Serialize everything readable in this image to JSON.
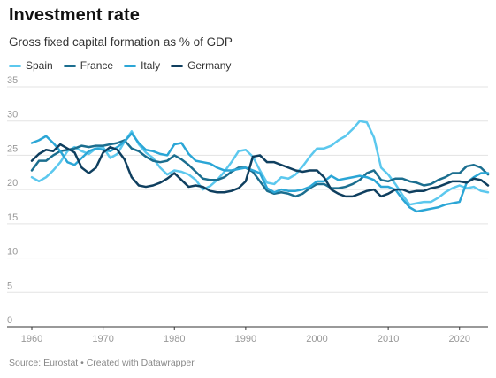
{
  "title": "Investment rate",
  "subtitle": "Gross fixed capital formation as % of GDP",
  "footer": "Source: Eurostat • Created with Datawrapper",
  "legend": [
    {
      "name": "Spain",
      "color": "#5cc8ee"
    },
    {
      "name": "France",
      "color": "#1b6e8f"
    },
    {
      "name": "Italy",
      "color": "#2ba6d6"
    },
    {
      "name": "Germany",
      "color": "#0f3f5f"
    }
  ],
  "chart_data": {
    "type": "line",
    "title": "Investment rate",
    "subtitle": "Gross fixed capital formation as % of GDP",
    "xlim": [
      1960,
      2024
    ],
    "ylim": [
      0,
      35
    ],
    "x_ticks": [
      "1960",
      "1970",
      "1980",
      "1990",
      "2000",
      "2010",
      "2020"
    ],
    "y_ticks": [
      "0",
      "5",
      "10",
      "15",
      "20",
      "25",
      "30",
      "35"
    ],
    "grid": true,
    "legend_position": "top-left",
    "series": [
      {
        "name": "Spain",
        "color": "#5cc8ee",
        "x": [
          1960,
          1961,
          1962,
          1963,
          1964,
          1965,
          1966,
          1967,
          1968,
          1969,
          1970,
          1971,
          1972,
          1973,
          1974,
          1975,
          1976,
          1977,
          1978,
          1979,
          1980,
          1981,
          1982,
          1983,
          1984,
          1985,
          1986,
          1987,
          1988,
          1989,
          1990,
          1991,
          1992,
          1993,
          1994,
          1995,
          1996,
          1997,
          1998,
          1999,
          2000,
          2001,
          2002,
          2003,
          2004,
          2005,
          2006,
          2007,
          2008,
          2009,
          2010,
          2011,
          2012,
          2013,
          2014,
          2015,
          2016,
          2017,
          2018,
          2019,
          2020,
          2021,
          2022,
          2023,
          2024
        ],
        "y": [
          21.8,
          21.2,
          21.8,
          22.8,
          24.0,
          25.6,
          26.2,
          25.6,
          25.2,
          26.0,
          26.2,
          24.6,
          25.2,
          27.0,
          28.5,
          26.6,
          25.4,
          24.6,
          23.2,
          22.2,
          22.8,
          22.6,
          22.2,
          21.4,
          20.0,
          20.5,
          21.4,
          22.6,
          24.0,
          25.6,
          25.8,
          24.8,
          22.8,
          21.0,
          20.8,
          21.8,
          21.6,
          22.2,
          23.4,
          24.8,
          26.0,
          26.0,
          26.4,
          27.2,
          27.8,
          28.8,
          30.0,
          29.8,
          27.6,
          23.2,
          22.2,
          20.8,
          19.2,
          17.8,
          18.0,
          18.2,
          18.2,
          18.8,
          19.6,
          20.2,
          20.6,
          20.2,
          20.4,
          19.8,
          19.6
        ]
      },
      {
        "name": "France",
        "color": "#1b6e8f",
        "x": [
          1960,
          1961,
          1962,
          1963,
          1964,
          1965,
          1966,
          1967,
          1968,
          1969,
          1970,
          1971,
          1972,
          1973,
          1974,
          1975,
          1976,
          1977,
          1978,
          1979,
          1980,
          1981,
          1982,
          1983,
          1984,
          1985,
          1986,
          1987,
          1988,
          1989,
          1990,
          1991,
          1992,
          1993,
          1994,
          1995,
          1996,
          1997,
          1998,
          1999,
          2000,
          2001,
          2002,
          2003,
          2004,
          2005,
          2006,
          2007,
          2008,
          2009,
          2010,
          2011,
          2012,
          2013,
          2014,
          2015,
          2016,
          2017,
          2018,
          2019,
          2020,
          2021,
          2022,
          2023,
          2024
        ],
        "y": [
          22.8,
          24.2,
          24.2,
          25.0,
          25.6,
          25.8,
          26.0,
          26.4,
          26.2,
          26.4,
          26.4,
          26.6,
          26.8,
          27.2,
          26.0,
          25.6,
          24.8,
          24.2,
          24.0,
          24.2,
          25.0,
          24.4,
          23.6,
          22.6,
          21.6,
          21.4,
          21.4,
          21.8,
          22.6,
          23.2,
          23.2,
          22.6,
          21.2,
          19.8,
          19.4,
          19.6,
          19.4,
          19.0,
          19.4,
          20.2,
          20.8,
          20.8,
          20.2,
          20.2,
          20.4,
          20.8,
          21.4,
          22.4,
          22.8,
          21.4,
          21.2,
          21.6,
          21.6,
          21.2,
          21.0,
          20.6,
          20.8,
          21.4,
          21.8,
          22.4,
          22.4,
          23.4,
          23.6,
          23.2,
          22.2
        ]
      },
      {
        "name": "Italy",
        "color": "#2ba6d6",
        "x": [
          1960,
          1961,
          1962,
          1963,
          1964,
          1965,
          1966,
          1967,
          1968,
          1969,
          1970,
          1971,
          1972,
          1973,
          1974,
          1975,
          1976,
          1977,
          1978,
          1979,
          1980,
          1981,
          1982,
          1983,
          1984,
          1985,
          1986,
          1987,
          1988,
          1989,
          1990,
          1991,
          1992,
          1993,
          1994,
          1995,
          1996,
          1997,
          1998,
          1999,
          2000,
          2001,
          2002,
          2003,
          2004,
          2005,
          2006,
          2007,
          2008,
          2009,
          2010,
          2011,
          2012,
          2013,
          2014,
          2015,
          2016,
          2017,
          2018,
          2019,
          2020,
          2021,
          2022,
          2023,
          2024
        ],
        "y": [
          26.8,
          27.2,
          27.8,
          26.8,
          25.6,
          24.0,
          23.6,
          24.6,
          25.6,
          26.0,
          25.8,
          25.6,
          26.2,
          27.0,
          28.2,
          26.8,
          25.8,
          25.6,
          25.2,
          25.0,
          26.6,
          26.8,
          25.2,
          24.2,
          24.0,
          23.8,
          23.2,
          22.8,
          22.8,
          23.0,
          23.2,
          22.8,
          22.4,
          20.2,
          19.6,
          20.0,
          19.8,
          19.8,
          20.0,
          20.4,
          21.2,
          21.2,
          22.0,
          21.4,
          21.6,
          21.8,
          22.0,
          21.8,
          21.4,
          20.4,
          20.4,
          20.0,
          18.6,
          17.4,
          16.8,
          17.0,
          17.2,
          17.4,
          17.8,
          18.0,
          18.2,
          21.0,
          21.8,
          22.4,
          22.4
        ]
      },
      {
        "name": "Germany",
        "color": "#0f3f5f",
        "x": [
          1960,
          1961,
          1962,
          1963,
          1964,
          1965,
          1966,
          1967,
          1968,
          1969,
          1970,
          1971,
          1972,
          1973,
          1974,
          1975,
          1976,
          1977,
          1978,
          1979,
          1980,
          1981,
          1982,
          1983,
          1984,
          1985,
          1986,
          1987,
          1988,
          1989,
          1990,
          1991,
          1992,
          1993,
          1994,
          1995,
          1996,
          1997,
          1998,
          1999,
          2000,
          2001,
          2002,
          2003,
          2004,
          2005,
          2006,
          2007,
          2008,
          2009,
          2010,
          2011,
          2012,
          2013,
          2014,
          2015,
          2016,
          2017,
          2018,
          2019,
          2020,
          2021,
          2022,
          2023,
          2024
        ],
        "y": [
          24.2,
          25.2,
          25.8,
          25.6,
          26.6,
          26.0,
          25.4,
          23.2,
          22.4,
          23.2,
          25.4,
          26.2,
          25.8,
          24.4,
          21.8,
          20.6,
          20.4,
          20.6,
          21.0,
          21.6,
          22.4,
          21.4,
          20.4,
          20.6,
          20.4,
          19.8,
          19.6,
          19.6,
          19.8,
          20.2,
          21.2,
          24.8,
          25.0,
          24.0,
          24.0,
          23.6,
          23.2,
          22.8,
          22.6,
          22.8,
          22.8,
          21.8,
          20.0,
          19.4,
          19.0,
          19.0,
          19.4,
          19.8,
          20.0,
          19.0,
          19.4,
          20.0,
          20.0,
          19.6,
          19.8,
          19.8,
          20.2,
          20.4,
          20.8,
          21.2,
          21.2,
          21.0,
          21.6,
          21.4,
          20.6
        ]
      }
    ]
  }
}
